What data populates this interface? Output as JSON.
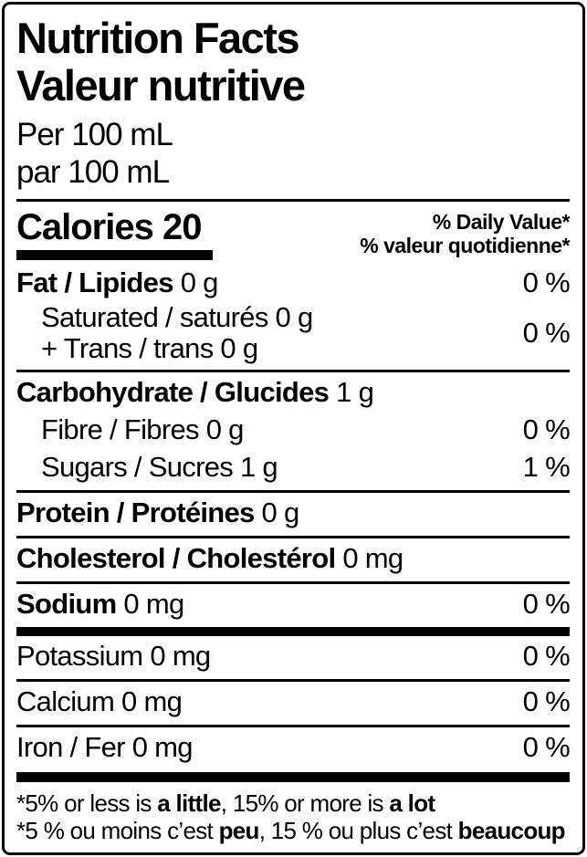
{
  "colors": {
    "ink": "#000000",
    "paper": "#ffffff",
    "border": "#000000"
  },
  "label": {
    "title_en": "Nutrition Facts",
    "title_fr": "Valeur nutritive",
    "serving_en": "Per 100 mL",
    "serving_fr": "par 100 mL",
    "calories": {
      "label": "Calories",
      "value": "20"
    },
    "dv_header_en": "% Daily Value*",
    "dv_header_fr": "% valeur quotidienne*",
    "rows": [
      {
        "type": "row",
        "name": "Fat / Lipides",
        "amount": "0 g",
        "dv": "0 %",
        "bold": true,
        "indent": false
      },
      {
        "type": "row2",
        "line1": "Saturated / saturés 0 g",
        "line2": "+ Trans / trans 0 g",
        "dv": "0 %"
      },
      {
        "type": "sep"
      },
      {
        "type": "row",
        "name": "Carbohydrate / Glucides",
        "amount": "1 g",
        "dv": "",
        "bold": true,
        "indent": false
      },
      {
        "type": "row",
        "name": "Fibre / Fibres",
        "amount": "0 g",
        "dv": "0 %",
        "bold": false,
        "indent": true
      },
      {
        "type": "row",
        "name": "Sugars / Sucres",
        "amount": "1 g",
        "dv": "1 %",
        "bold": false,
        "indent": true
      },
      {
        "type": "sep"
      },
      {
        "type": "row",
        "name": "Protein / Protéines",
        "amount": "0 g",
        "dv": "",
        "bold": true,
        "indent": false
      },
      {
        "type": "sep"
      },
      {
        "type": "row",
        "name": "Cholesterol / Cholestérol",
        "amount": "0 mg",
        "dv": "",
        "bold": true,
        "indent": false
      },
      {
        "type": "sep"
      },
      {
        "type": "row",
        "name": "Sodium",
        "amount": "0 mg",
        "dv": "0 %",
        "bold": true,
        "indent": false
      },
      {
        "type": "sep",
        "thick": true
      },
      {
        "type": "row",
        "name": "Potassium",
        "amount": "0 mg",
        "dv": "0 %",
        "bold": false,
        "indent": false
      },
      {
        "type": "sep"
      },
      {
        "type": "row",
        "name": "Calcium",
        "amount": "0 mg",
        "dv": "0 %",
        "bold": false,
        "indent": false
      },
      {
        "type": "sep"
      },
      {
        "type": "row",
        "name": "Iron / Fer",
        "amount": "0 mg",
        "dv": "0 %",
        "bold": false,
        "indent": false
      },
      {
        "type": "sep",
        "thick": true
      }
    ],
    "footnotes": {
      "en": [
        {
          "text": "*5% or less is ",
          "bold": false
        },
        {
          "text": "a little",
          "bold": true
        },
        {
          "text": ", 15% or more is ",
          "bold": false
        },
        {
          "text": "a lot",
          "bold": true
        }
      ],
      "fr": [
        {
          "text": "*5 % ou moins c’est ",
          "bold": false
        },
        {
          "text": "peu",
          "bold": true
        },
        {
          "text": ", 15 % ou plus c’est ",
          "bold": false
        },
        {
          "text": "beaucoup",
          "bold": true
        }
      ]
    }
  }
}
